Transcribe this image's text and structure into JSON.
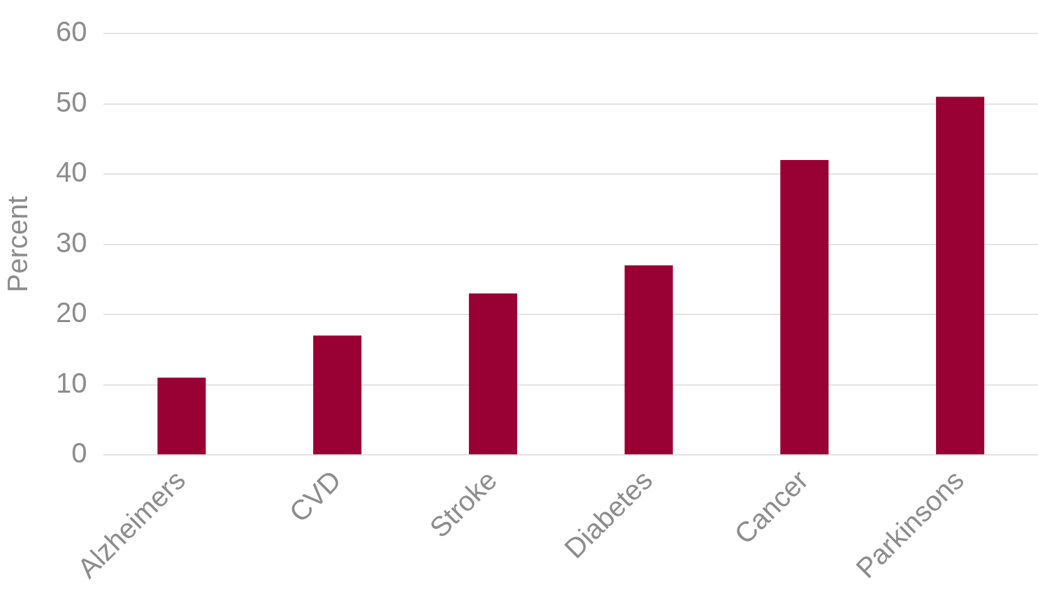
{
  "chart_data": {
    "type": "bar",
    "ylabel": "Percent",
    "categories": [
      "Alzheimers",
      "CVD",
      "Stroke",
      "Diabetes",
      "Cancer",
      "Parkinsons"
    ],
    "values": [
      11,
      17,
      23,
      27,
      42,
      51
    ],
    "color": "#990033",
    "ylim": [
      0,
      60
    ],
    "yticks": [
      0,
      10,
      20,
      30,
      40,
      50,
      60
    ],
    "grid": "y"
  }
}
